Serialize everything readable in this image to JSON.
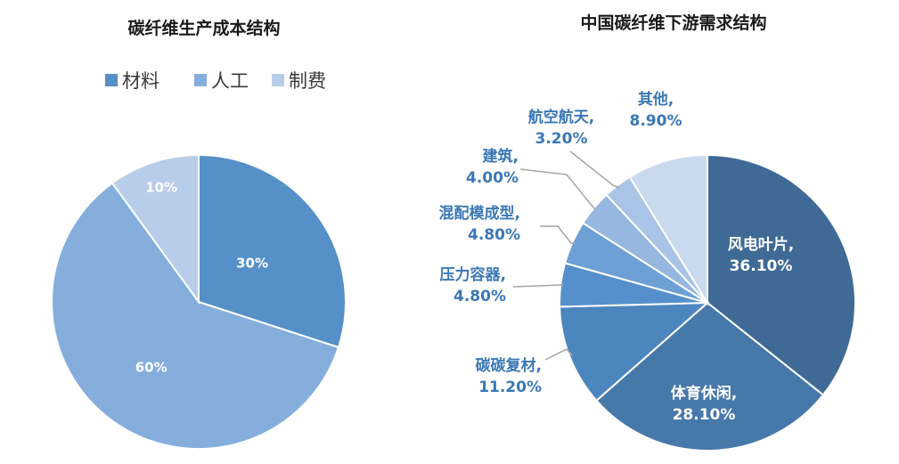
{
  "chart_data": [
    {
      "type": "pie",
      "title": "碳纤维生产成本结构",
      "legend_position": "top",
      "categories": [
        "材料",
        "人工",
        "制费"
      ],
      "values": [
        30,
        60,
        10
      ],
      "data_labels": [
        "30%",
        "60%",
        "10%"
      ],
      "colors": [
        "#5590c8",
        "#85aedd",
        "#b8cde9"
      ]
    },
    {
      "type": "pie",
      "title": "中国碳纤维下游需求结构",
      "categories": [
        "风电叶片",
        "体育休闲",
        "碳碳复材",
        "压力容器",
        "混配模成型",
        "建筑",
        "航空航天",
        "其他"
      ],
      "values": [
        36.1,
        28.1,
        11.2,
        4.8,
        4.8,
        4.0,
        3.2,
        8.9
      ],
      "data_labels": [
        "36.10%",
        "28.10%",
        "11.20%",
        "4.80%",
        "4.80%",
        "4.00%",
        "3.20%",
        "8.90%"
      ],
      "colors": [
        "#3f6a95",
        "#4778aa",
        "#4c86bf",
        "#5590cc",
        "#6ea0d6",
        "#95b7e0",
        "#a9c4e6",
        "#c9d9ee"
      ]
    }
  ]
}
